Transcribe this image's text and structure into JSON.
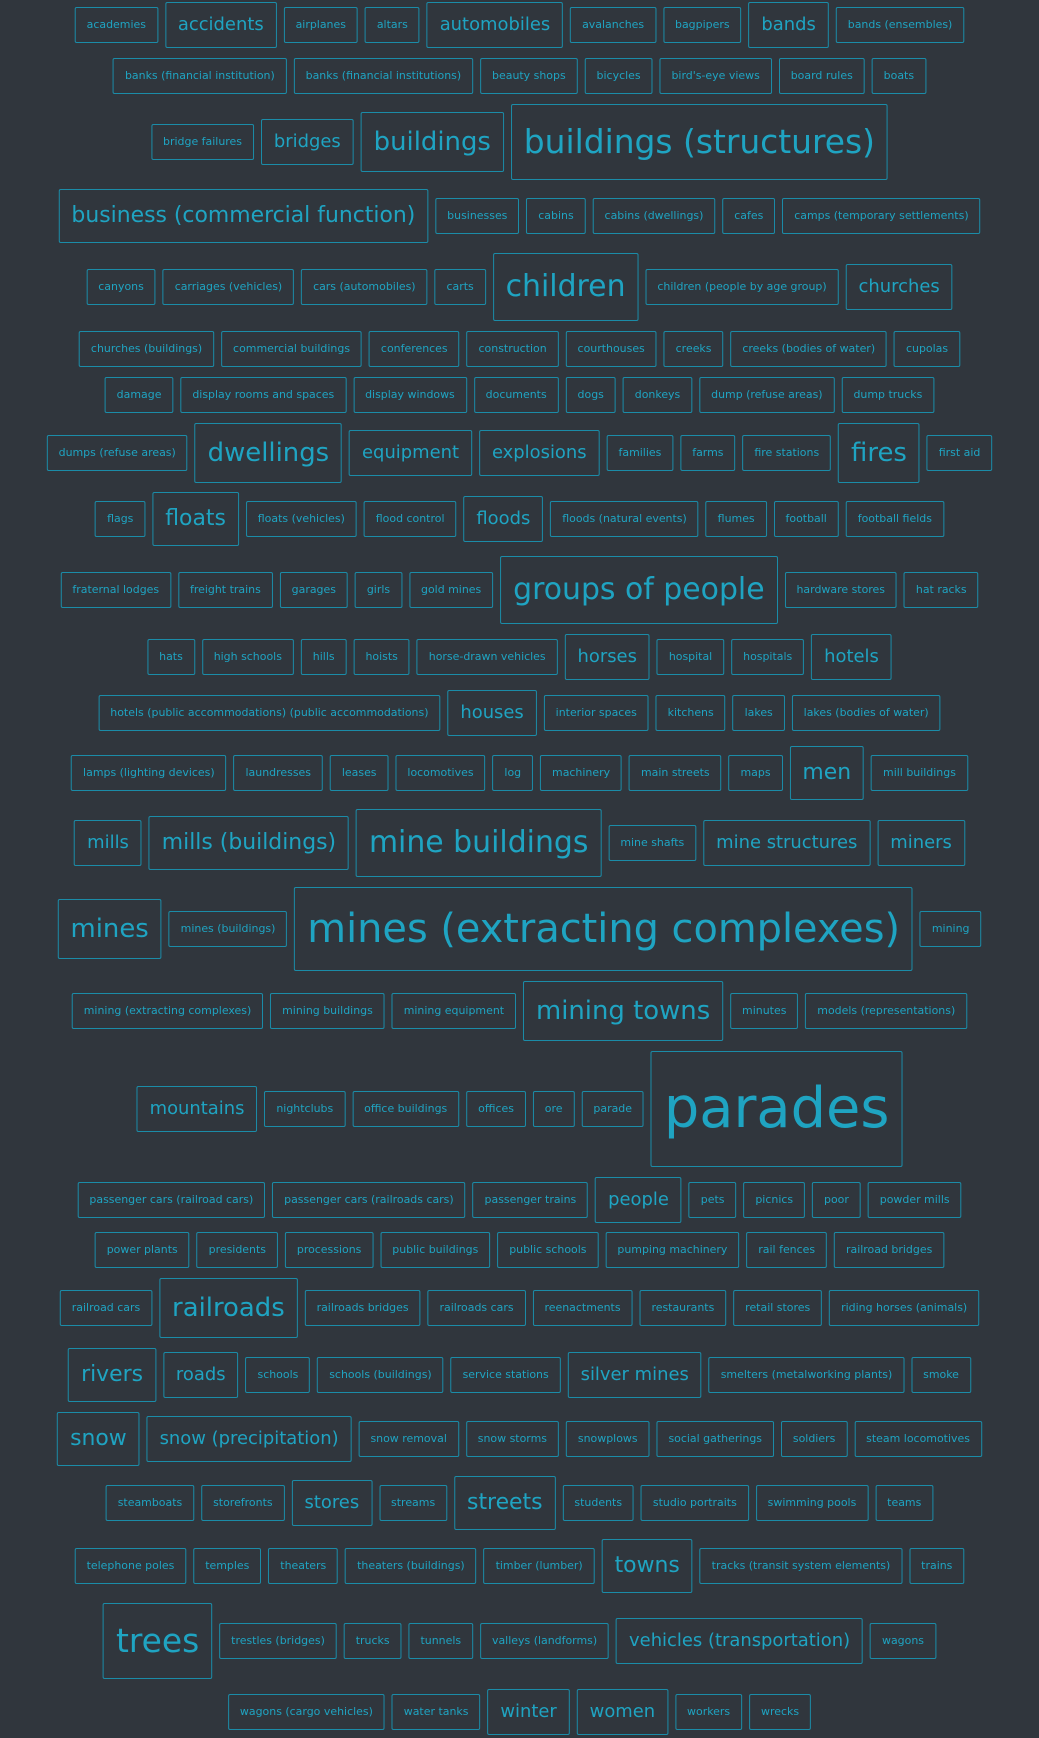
{
  "accent_color": "#1fa4c2",
  "background_color": "#30363d",
  "tag_rows": [
    [
      [
        "academies",
        1
      ],
      [
        "accidents",
        3
      ],
      [
        "airplanes",
        1
      ],
      [
        "altars",
        1
      ],
      [
        "automobiles",
        3
      ],
      [
        "avalanches",
        1
      ],
      [
        "bagpipers",
        1
      ],
      [
        "bands",
        3
      ],
      [
        "bands (ensembles)",
        1
      ]
    ],
    [
      [
        "banks (financial institution)",
        1
      ],
      [
        "banks (financial institutions)",
        1
      ],
      [
        "beauty shops",
        1
      ],
      [
        "bicycles",
        1
      ],
      [
        "bird's-eye views",
        1
      ],
      [
        "board rules",
        1
      ],
      [
        "boats",
        1
      ]
    ],
    [
      [
        "bridge failures",
        1
      ],
      [
        "bridges",
        3
      ],
      [
        "buildings",
        5
      ],
      [
        "buildings (structures)",
        7
      ]
    ],
    [
      [
        "business (commercial function)",
        4
      ],
      [
        "businesses",
        1
      ],
      [
        "cabins",
        1
      ],
      [
        "cabins (dwellings)",
        1
      ],
      [
        "cafes",
        1
      ],
      [
        "camps (temporary settlements)",
        1
      ]
    ],
    [
      [
        "canyons",
        1
      ],
      [
        "carriages (vehicles)",
        1
      ],
      [
        "cars (automobiles)",
        1
      ],
      [
        "carts",
        1
      ],
      [
        "children",
        6
      ],
      [
        "children (people by age group)",
        1
      ],
      [
        "churches",
        3
      ]
    ],
    [
      [
        "churches (buildings)",
        1
      ],
      [
        "commercial buildings",
        1
      ],
      [
        "conferences",
        1
      ],
      [
        "construction",
        1
      ],
      [
        "courthouses",
        1
      ],
      [
        "creeks",
        1
      ],
      [
        "creeks (bodies of water)",
        1
      ],
      [
        "cupolas",
        1
      ]
    ],
    [
      [
        "damage",
        1
      ],
      [
        "display rooms and spaces",
        1
      ],
      [
        "display windows",
        1
      ],
      [
        "documents",
        1
      ],
      [
        "dogs",
        1
      ],
      [
        "donkeys",
        1
      ],
      [
        "dump (refuse areas)",
        1
      ],
      [
        "dump trucks",
        1
      ]
    ],
    [
      [
        "dumps (refuse areas)",
        1
      ],
      [
        "dwellings",
        5
      ],
      [
        "equipment",
        3
      ],
      [
        "explosions",
        3
      ],
      [
        "families",
        1
      ],
      [
        "farms",
        1
      ],
      [
        "fire stations",
        1
      ],
      [
        "fires",
        5
      ],
      [
        "first aid",
        1
      ]
    ],
    [
      [
        "flags",
        1
      ],
      [
        "floats",
        4
      ],
      [
        "floats (vehicles)",
        1
      ],
      [
        "flood control",
        1
      ],
      [
        "floods",
        3
      ],
      [
        "floods (natural events)",
        1
      ],
      [
        "flumes",
        1
      ],
      [
        "football",
        1
      ],
      [
        "football fields",
        1
      ]
    ],
    [
      [
        "fraternal lodges",
        1
      ],
      [
        "freight trains",
        1
      ],
      [
        "garages",
        1
      ],
      [
        "girls",
        1
      ],
      [
        "gold mines",
        1
      ],
      [
        "groups of people",
        6
      ],
      [
        "hardware stores",
        1
      ],
      [
        "hat racks",
        1
      ]
    ],
    [
      [
        "hats",
        1
      ],
      [
        "high schools",
        1
      ],
      [
        "hills",
        1
      ],
      [
        "hoists",
        1
      ],
      [
        "horse-drawn vehicles",
        1
      ],
      [
        "horses",
        3
      ],
      [
        "hospital",
        1
      ],
      [
        "hospitals",
        1
      ],
      [
        "hotels",
        3
      ]
    ],
    [
      [
        "hotels (public accommodations) (public accommodations)",
        1
      ],
      [
        "houses",
        3
      ],
      [
        "interior spaces",
        1
      ],
      [
        "kitchens",
        1
      ],
      [
        "lakes",
        1
      ],
      [
        "lakes (bodies of water)",
        1
      ]
    ],
    [
      [
        "lamps (lighting devices)",
        1
      ],
      [
        "laundresses",
        1
      ],
      [
        "leases",
        1
      ],
      [
        "locomotives",
        1
      ],
      [
        "log",
        1
      ],
      [
        "machinery",
        1
      ],
      [
        "main streets",
        1
      ],
      [
        "maps",
        1
      ],
      [
        "men",
        4
      ],
      [
        "mill buildings",
        1
      ]
    ],
    [
      [
        "mills",
        3
      ],
      [
        "mills (buildings)",
        4
      ],
      [
        "mine buildings",
        6
      ],
      [
        "mine shafts",
        1
      ],
      [
        "mine structures",
        3
      ],
      [
        "miners",
        3
      ]
    ],
    [
      [
        "mines",
        5
      ],
      [
        "mines (buildings)",
        1
      ],
      [
        "mines (extracting complexes)",
        8
      ],
      [
        "mining",
        1
      ]
    ],
    [
      [
        "mining (extracting complexes)",
        1
      ],
      [
        "mining buildings",
        1
      ],
      [
        "mining equipment",
        1
      ],
      [
        "mining towns",
        5
      ],
      [
        "minutes",
        1
      ],
      [
        "models (representations)",
        1
      ]
    ],
    [
      [
        "mountains",
        3
      ],
      [
        "nightclubs",
        1
      ],
      [
        "office buildings",
        1
      ],
      [
        "offices",
        1
      ],
      [
        "ore",
        1
      ],
      [
        "parade",
        1
      ],
      [
        "parades",
        9
      ]
    ],
    [
      [
        "passenger cars (railroad cars)",
        1
      ],
      [
        "passenger cars (railroads cars)",
        1
      ],
      [
        "passenger trains",
        1
      ],
      [
        "people",
        3
      ],
      [
        "pets",
        1
      ],
      [
        "picnics",
        1
      ],
      [
        "poor",
        1
      ],
      [
        "powder mills",
        1
      ]
    ],
    [
      [
        "power plants",
        1
      ],
      [
        "presidents",
        1
      ],
      [
        "processions",
        1
      ],
      [
        "public buildings",
        1
      ],
      [
        "public schools",
        1
      ],
      [
        "pumping machinery",
        1
      ],
      [
        "rail fences",
        1
      ],
      [
        "railroad bridges",
        1
      ]
    ],
    [
      [
        "railroad cars",
        1
      ],
      [
        "railroads",
        5
      ],
      [
        "railroads bridges",
        1
      ],
      [
        "railroads cars",
        1
      ],
      [
        "reenactments",
        1
      ],
      [
        "restaurants",
        1
      ],
      [
        "retail stores",
        1
      ],
      [
        "riding horses (animals)",
        1
      ]
    ],
    [
      [
        "rivers",
        4
      ],
      [
        "roads",
        3
      ],
      [
        "schools",
        1
      ],
      [
        "schools (buildings)",
        1
      ],
      [
        "service stations",
        1
      ],
      [
        "silver mines",
        3
      ],
      [
        "smelters (metalworking plants)",
        1
      ],
      [
        "smoke",
        1
      ]
    ],
    [
      [
        "snow",
        4
      ],
      [
        "snow (precipitation)",
        3
      ],
      [
        "snow removal",
        1
      ],
      [
        "snow storms",
        1
      ],
      [
        "snowplows",
        1
      ],
      [
        "social gatherings",
        1
      ],
      [
        "soldiers",
        1
      ],
      [
        "steam locomotives",
        1
      ]
    ],
    [
      [
        "steamboats",
        1
      ],
      [
        "storefronts",
        1
      ],
      [
        "stores",
        3
      ],
      [
        "streams",
        1
      ],
      [
        "streets",
        4
      ],
      [
        "students",
        1
      ],
      [
        "studio portraits",
        1
      ],
      [
        "swimming pools",
        1
      ],
      [
        "teams",
        1
      ]
    ],
    [
      [
        "telephone poles",
        1
      ],
      [
        "temples",
        1
      ],
      [
        "theaters",
        1
      ],
      [
        "theaters (buildings)",
        1
      ],
      [
        "timber (lumber)",
        1
      ],
      [
        "towns",
        4
      ],
      [
        "tracks (transit system elements)",
        1
      ],
      [
        "trains",
        1
      ]
    ],
    [
      [
        "trees",
        7
      ],
      [
        "trestles (bridges)",
        1
      ],
      [
        "trucks",
        1
      ],
      [
        "tunnels",
        1
      ],
      [
        "valleys (landforms)",
        1
      ],
      [
        "vehicles (transportation)",
        3
      ],
      [
        "wagons",
        1
      ]
    ],
    [
      [
        "wagons (cargo vehicles)",
        1
      ],
      [
        "water tanks",
        1
      ],
      [
        "winter",
        3
      ],
      [
        "women",
        3
      ],
      [
        "workers",
        1
      ],
      [
        "wrecks",
        1
      ]
    ]
  ]
}
